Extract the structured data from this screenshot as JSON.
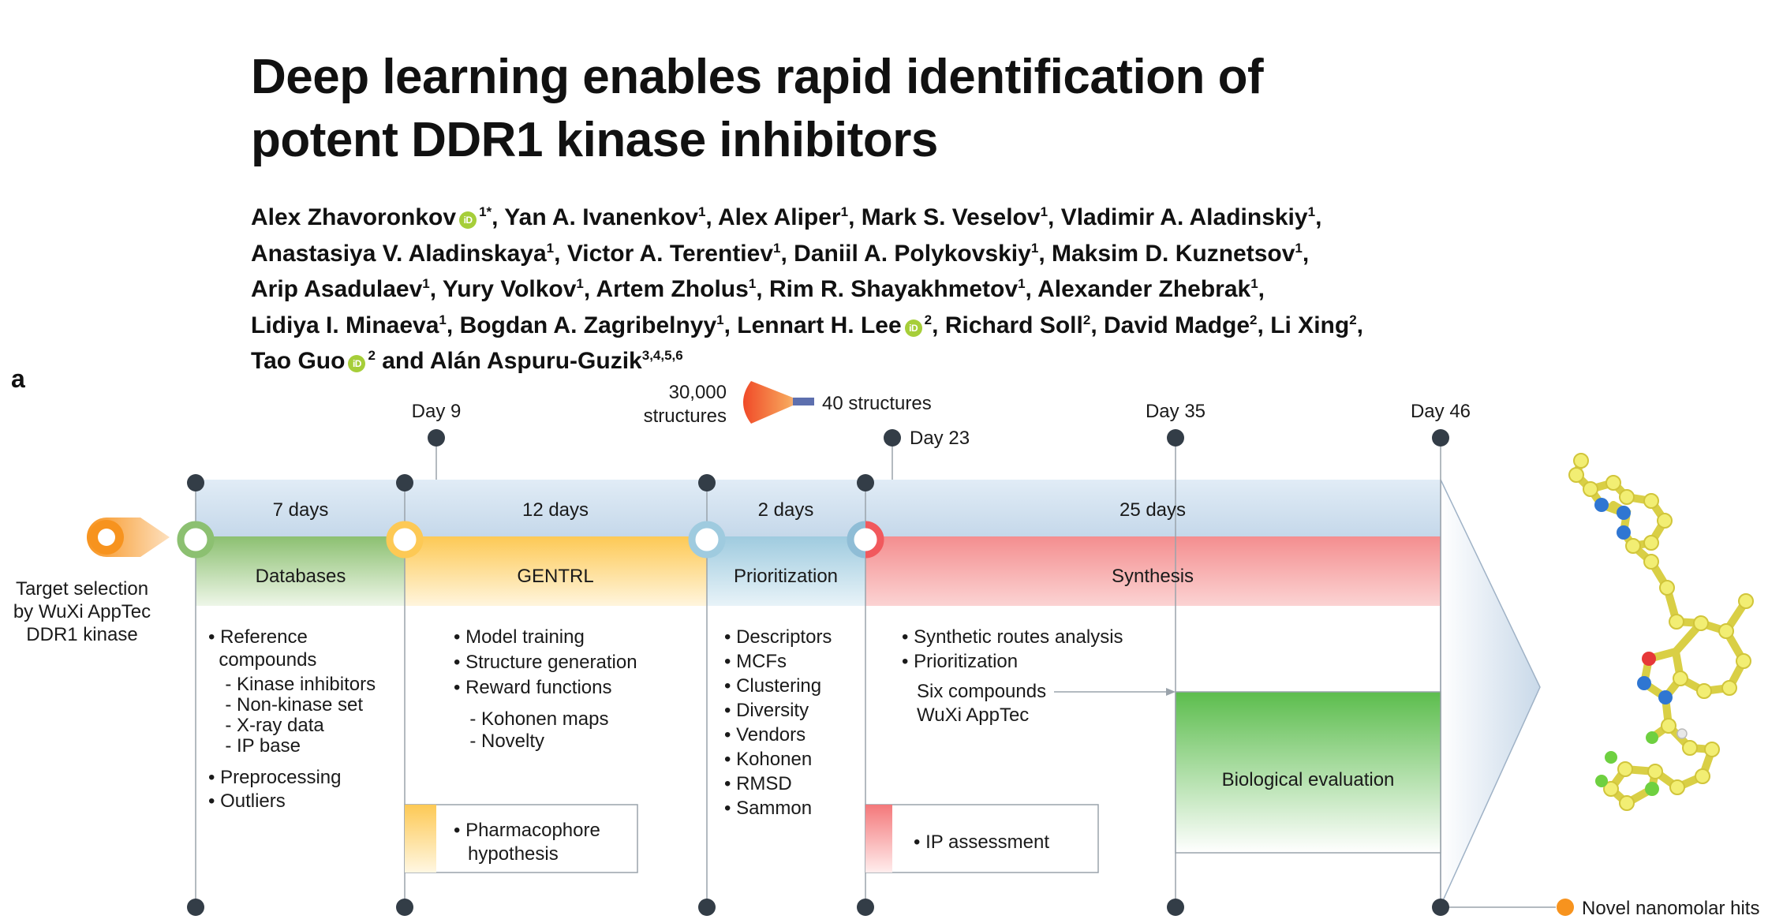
{
  "paper": {
    "title_line1": "Deep learning enables rapid identification of",
    "title_line2": "potent DDR1 kinase inhibitors",
    "authors": [
      {
        "name": "Alex Zhavoronkov",
        "orcid": true,
        "aff": "1*"
      },
      {
        "name": "Yan A. Ivanenkov",
        "aff": "1"
      },
      {
        "name": "Alex Aliper",
        "aff": "1"
      },
      {
        "name": "Mark S. Veselov",
        "aff": "1"
      },
      {
        "name": "Vladimir A. Aladinskiy",
        "aff": "1"
      },
      {
        "name": "Anastasiya V. Aladinskaya",
        "aff": "1"
      },
      {
        "name": "Victor A. Terentiev",
        "aff": "1"
      },
      {
        "name": "Daniil A. Polykovskiy",
        "aff": "1"
      },
      {
        "name": "Maksim D. Kuznetsov",
        "aff": "1"
      },
      {
        "name": "Arip Asadulaev",
        "aff": "1"
      },
      {
        "name": "Yury Volkov",
        "aff": "1"
      },
      {
        "name": "Artem Zholus",
        "aff": "1"
      },
      {
        "name": "Rim R. Shayakhmetov",
        "aff": "1"
      },
      {
        "name": "Alexander Zhebrak",
        "aff": "1"
      },
      {
        "name": "Lidiya I. Minaeva",
        "aff": "1"
      },
      {
        "name": "Bogdan A. Zagribelnyy",
        "aff": "1"
      },
      {
        "name": "Lennart H. Lee",
        "orcid": true,
        "aff": "2"
      },
      {
        "name": "Richard Soll",
        "aff": "2"
      },
      {
        "name": "David Madge",
        "aff": "2"
      },
      {
        "name": "Li Xing",
        "aff": "2"
      },
      {
        "name": "Tao Guo",
        "orcid": true,
        "aff": "2"
      },
      {
        "name": "Alán Aspuru-Guzik",
        "aff": "3,4,5,6"
      }
    ],
    "author_line_breaks_after": [
      4,
      8,
      13,
      19
    ],
    "conjunction": "and",
    "orcid_glyph": "iD",
    "orcid_color": "#a6ce39"
  },
  "figure": {
    "panel_label": "a",
    "day_labels": {
      "day9": "Day 9",
      "day23": "Day 23",
      "day35": "Day 35",
      "day46": "Day 46"
    },
    "funnel": {
      "input": [
        "30,000",
        "structures"
      ],
      "output": "40 structures"
    },
    "target_selection": [
      "Target selection",
      "by WuXi AppTec",
      "DDR1 kinase"
    ],
    "stages": [
      {
        "duration": "7 days",
        "name": "Databases",
        "color": "#8cc071",
        "items": [
          "• Reference",
          "  compounds",
          "  - Kinase inhibitors",
          "  - Non-kinase set",
          "  - X-ray data",
          "  - IP base",
          "• Preprocessing",
          "• Outliers"
        ]
      },
      {
        "duration": "12 days",
        "name": "GENTRL",
        "color": "#fdc955",
        "items": [
          "• Model training",
          "• Structure generation",
          "• Reward functions",
          "  - Kohonen maps",
          "  - Novelty"
        ]
      },
      {
        "duration": "2 days",
        "name": "Prioritization",
        "color": "#9fcbdf",
        "items": [
          "• Descriptors",
          "• MCFs",
          "• Clustering",
          "• Diversity",
          "• Vendors",
          "• Kohonen",
          "• RMSD",
          "• Sammon"
        ]
      },
      {
        "duration": "25 days",
        "name": "Synthesis",
        "color": "#f48e8f",
        "items": [
          "• Synthetic routes analysis",
          "• Prioritization",
          "Six compounds",
          "WuXi AppTec"
        ]
      }
    ],
    "sub_boxes": {
      "pharmacophore": [
        "• Pharmacophore",
        "hypothesis"
      ],
      "ip": "• IP assessment",
      "bio": "Biological evaluation"
    },
    "legend": {
      "label": "Novel nanomolar hits",
      "color": "#f7931e"
    }
  }
}
